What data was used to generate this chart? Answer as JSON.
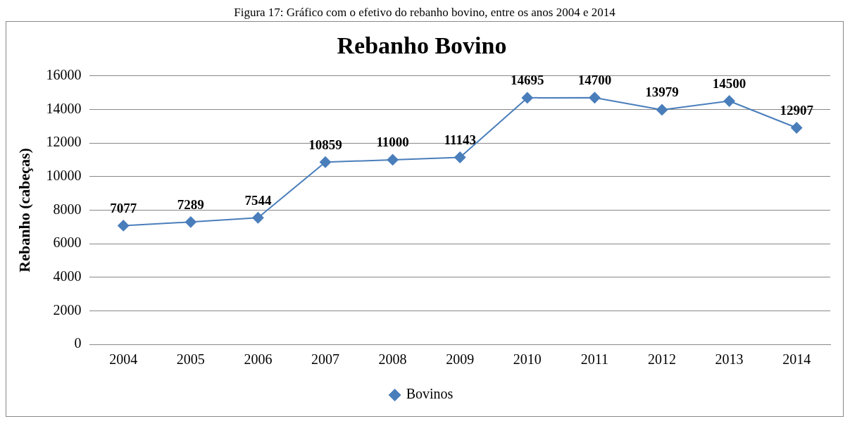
{
  "chart_data": {
    "type": "line",
    "title": "Rebanho Bovino",
    "ylabel": "Rebanho (cabeças)",
    "annotations": [
      "Figura 17: Gráfico com o efetivo do rebanho bovino, entre os anos 2004 e 2014"
    ],
    "categories": [
      "2004",
      "2005",
      "2006",
      "2007",
      "2008",
      "2009",
      "2010",
      "2011",
      "2012",
      "2013",
      "2014"
    ],
    "series": [
      {
        "name": "Bovinos",
        "color": "#4a7ebb",
        "values": [
          7077,
          7289,
          7544,
          10859,
          11000,
          11143,
          14695,
          14700,
          13979,
          14500,
          12907
        ]
      }
    ],
    "ylim": [
      0,
      16000
    ],
    "yticks": [
      0,
      2000,
      4000,
      6000,
      8000,
      10000,
      12000,
      14000,
      16000
    ],
    "grid": "y",
    "legend": "bottom",
    "marker": "diamond",
    "line_style": "solid",
    "data_labels": true
  }
}
